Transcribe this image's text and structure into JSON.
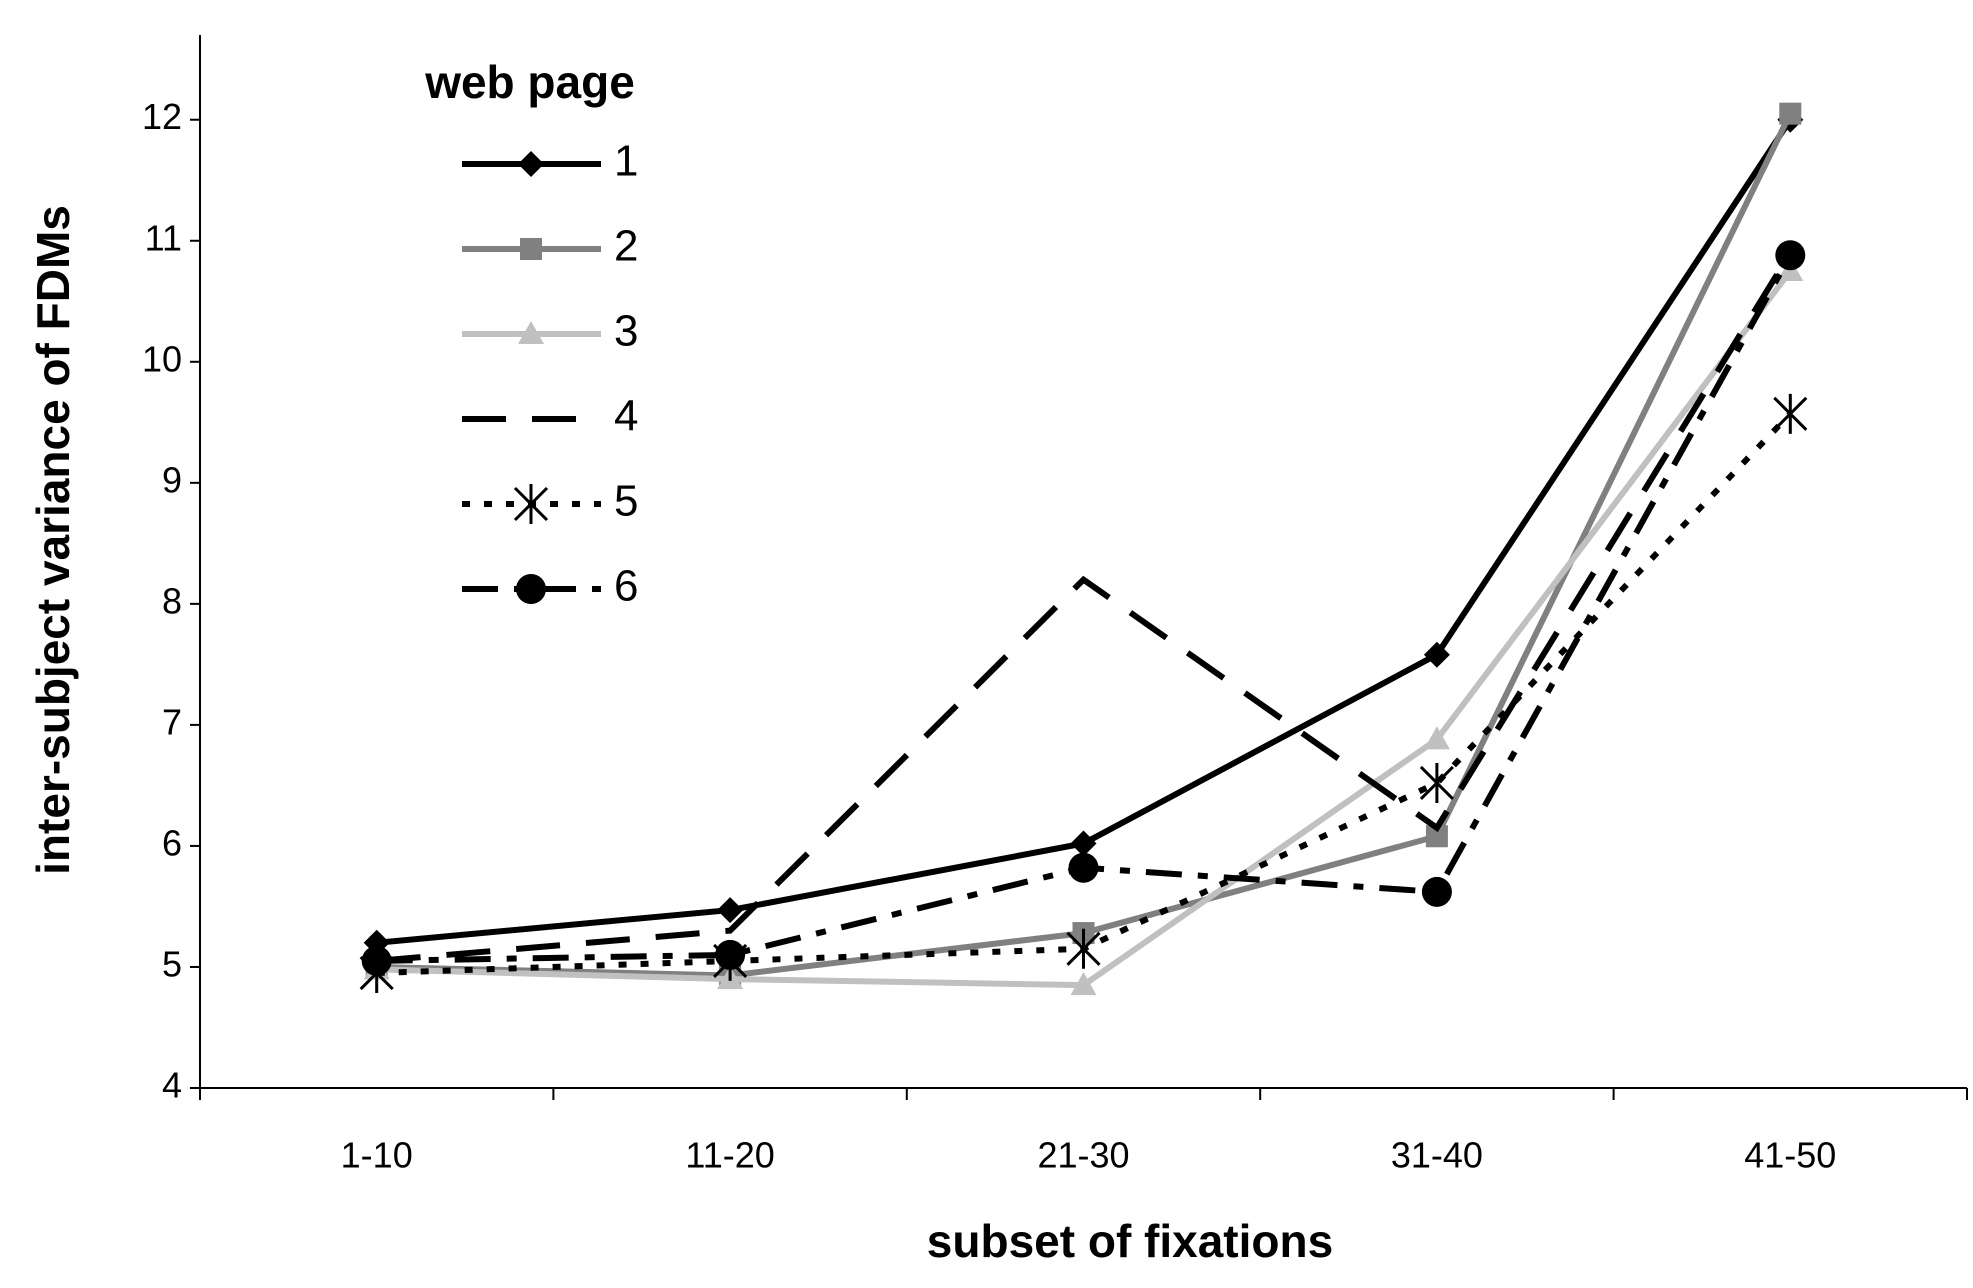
{
  "chart_data": {
    "type": "line",
    "x_label": "subset of fixations",
    "y_label": "inter-subject variance of FDMs",
    "legend_title": "web page",
    "legend": "top-left",
    "categories": [
      "1-10",
      "11-20",
      "21-30",
      "31-40",
      "41-50"
    ],
    "ylim": [
      4,
      12.7
    ],
    "yticks": [
      4,
      5,
      6,
      7,
      8,
      9,
      10,
      11,
      12
    ],
    "series": [
      {
        "name": "1",
        "color": "#000000",
        "dash": "solid",
        "marker": "diamond",
        "values": [
          5.2,
          5.47,
          6.02,
          7.58,
          12.0
        ]
      },
      {
        "name": "2",
        "color": "#808080",
        "dash": "solid",
        "marker": "square",
        "values": [
          5.0,
          4.93,
          5.28,
          6.08,
          12.05
        ]
      },
      {
        "name": "3",
        "color": "#c0c0c0",
        "dash": "solid",
        "marker": "triangle",
        "values": [
          4.98,
          4.9,
          4.85,
          6.88,
          10.75
        ]
      },
      {
        "name": "4",
        "color": "#000000",
        "dash": "long-dash",
        "marker": "none",
        "values": [
          5.05,
          5.3,
          8.2,
          6.15,
          10.9
        ]
      },
      {
        "name": "5",
        "color": "#000000",
        "dash": "dot",
        "marker": "asterisk",
        "values": [
          4.95,
          5.05,
          5.15,
          6.52,
          9.57
        ]
      },
      {
        "name": "6",
        "color": "#000000",
        "dash": "dash-dot",
        "marker": "circle",
        "values": [
          5.05,
          5.1,
          5.82,
          5.62,
          10.88
        ]
      }
    ]
  }
}
